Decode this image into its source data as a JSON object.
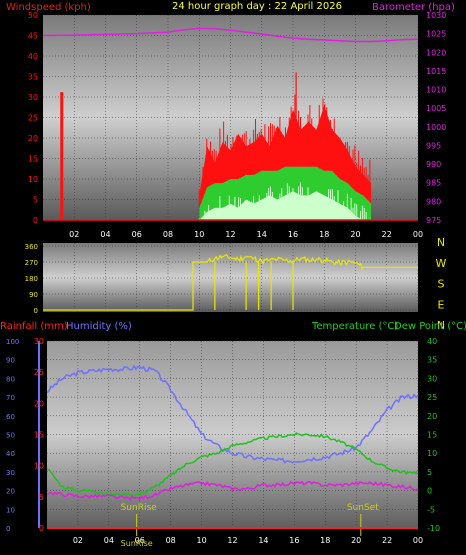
{
  "header": {
    "left_label": "Windspeed (kph)",
    "title": "24 hour graph day : 22 April 2026",
    "right_label": "Barometer (hpa)"
  },
  "colors": {
    "wind": "#ff1010",
    "gust_band": "#2ecc2e",
    "gust_light": "#ccffcc",
    "baro": "#e020e0",
    "dir": "#e8e800",
    "humidity": "#7070ff",
    "temperature": "#20c020",
    "dewpoint": "#e020e0",
    "rain": "#ff2020",
    "rain_axis": "#7070ff",
    "temp_axis": "#20c020",
    "green_label": "#22cc22",
    "sun": "#cccc20"
  },
  "chart_data": [
    {
      "type": "line",
      "name": "wind-baro",
      "x_ticks": [
        "02",
        "04",
        "06",
        "08",
        "10",
        "12",
        "14",
        "16",
        "18",
        "20",
        "22",
        "00"
      ],
      "y_left": {
        "label": "Windspeed (kph)",
        "ylim": [
          0,
          50
        ],
        "ticks": [
          "0",
          "5",
          "10",
          "15",
          "20",
          "25",
          "30",
          "35",
          "40",
          "45",
          "50"
        ]
      },
      "y_right": {
        "label": "Barometer (hpa)",
        "ylim": [
          975,
          1030
        ],
        "ticks": [
          "975",
          "980",
          "985",
          "990",
          "995",
          "1000",
          "1005",
          "1010",
          "1015",
          "1020",
          "1025",
          "1030"
        ]
      },
      "grid": true,
      "series": [
        {
          "key": "barometer",
          "x": [
            0,
            2,
            4,
            6,
            8,
            9,
            10,
            11,
            12,
            13,
            14,
            15,
            16,
            17,
            18,
            19,
            20,
            21,
            22,
            23,
            24
          ],
          "y": [
            1024.5,
            1024.6,
            1024.8,
            1025,
            1025.4,
            1026,
            1026.4,
            1026.3,
            1025.9,
            1025.4,
            1024.9,
            1024.3,
            1023.8,
            1023.5,
            1023.3,
            1023.1,
            1022.9,
            1022.9,
            1023.1,
            1023.4,
            1023.5
          ]
        },
        {
          "key": "wind_spike",
          "x": [
            1.15,
            1.15,
            1.25,
            1.25
          ],
          "y": [
            0,
            31,
            31,
            0
          ]
        }
      ],
      "wind_envelope": {
        "x": [
          10.0,
          10.5,
          11,
          11.5,
          12,
          12.5,
          13,
          13.5,
          14,
          14.5,
          15,
          15.5,
          16,
          16.5,
          17,
          17.5,
          18,
          18.5,
          19,
          19.5,
          20,
          20.5,
          21
        ],
        "gust": [
          6,
          18,
          14,
          19,
          17,
          21,
          18,
          19,
          21,
          18,
          23,
          20,
          27,
          22,
          24,
          22,
          28,
          22,
          20,
          17,
          13,
          11,
          9
        ],
        "avg": [
          3,
          8,
          9,
          9,
          10,
          10,
          11,
          11,
          12,
          12,
          12,
          13,
          13,
          13,
          13,
          13,
          12,
          12,
          10,
          9,
          7,
          6,
          4
        ],
        "low": [
          0,
          2,
          3,
          3,
          4,
          3,
          5,
          4,
          5,
          6,
          5,
          6,
          7,
          6,
          6,
          7,
          6,
          5,
          4,
          3,
          1,
          0,
          0
        ]
      }
    },
    {
      "type": "scatter",
      "name": "wind-direction",
      "x_ticks": [],
      "y_left": {
        "ylim": [
          0,
          360
        ],
        "ticks": [
          "0",
          "90",
          "180",
          "270",
          "360"
        ]
      },
      "y_right_labels": [
        "N",
        "W",
        "S",
        "E",
        "N"
      ],
      "series": [
        {
          "key": "direction",
          "x": [
            0,
            9.6,
            9.6,
            10.5,
            11,
            11.5,
            12,
            12.5,
            13,
            13.5,
            14,
            14.5,
            15,
            15.5,
            16,
            16.5,
            17,
            17.5,
            18,
            18.5,
            19,
            19.5,
            20,
            20.5,
            21,
            24
          ],
          "y": [
            0,
            0,
            270,
            270,
            290,
            300,
            295,
            285,
            300,
            290,
            275,
            280,
            285,
            280,
            275,
            290,
            280,
            285,
            280,
            270,
            265,
            270,
            265,
            240,
            240,
            240
          ]
        }
      ],
      "drops": [
        {
          "x": 11.0,
          "y": 0
        },
        {
          "x": 13.0,
          "y": 0
        },
        {
          "x": 13.8,
          "y": 0
        },
        {
          "x": 14.6,
          "y": 0
        },
        {
          "x": 16.0,
          "y": 0
        }
      ]
    },
    {
      "type": "line",
      "name": "rain-humidity-temp",
      "x_ticks": [
        "02",
        "04",
        "06",
        "08",
        "10",
        "12",
        "14",
        "16",
        "18",
        "20",
        "22",
        "00"
      ],
      "labels": {
        "rain": "Rainfall (mm)",
        "humidity": "Humidity (%)",
        "temperature": "Temperature (°C)",
        "dewpoint": "Dew Point (°C)"
      },
      "y_humidity": {
        "ylim": [
          0,
          100
        ],
        "ticks": [
          "0",
          "10",
          "20",
          "30",
          "40",
          "50",
          "60",
          "70",
          "80",
          "90",
          "100"
        ]
      },
      "y_rain": {
        "ylim": [
          0,
          30
        ],
        "ticks": [
          "0",
          "5",
          "10",
          "15",
          "20",
          "25",
          "30"
        ]
      },
      "y_temp": {
        "ylim": [
          -10,
          40
        ],
        "ticks": [
          "-10",
          "-5",
          "0",
          "5",
          "10",
          "15",
          "20",
          "25",
          "30",
          "35",
          "40"
        ]
      },
      "grid": true,
      "sunrise": {
        "label": "SunRise",
        "x": 5.8
      },
      "sunset": {
        "label": "SunSet",
        "x": 20.3
      },
      "x_marker": "SunRise",
      "series": [
        {
          "key": "humidity",
          "x": [
            0,
            1,
            2,
            3,
            4,
            5,
            6,
            7,
            8,
            9,
            10,
            11,
            12,
            13,
            14,
            15,
            16,
            17,
            18,
            19,
            20,
            21,
            22,
            23,
            24
          ],
          "y": [
            73,
            80,
            83,
            84,
            85,
            85,
            86,
            84,
            74,
            62,
            50,
            44,
            40,
            38,
            37,
            36,
            36,
            37,
            38,
            40,
            43,
            52,
            63,
            70,
            71
          ]
        },
        {
          "key": "temperature",
          "x": [
            0,
            1,
            2,
            3,
            4,
            5,
            6,
            7,
            8,
            9,
            10,
            11,
            12,
            13,
            14,
            15,
            16,
            17,
            18,
            19,
            20,
            21,
            22,
            23,
            24
          ],
          "y": [
            6,
            1,
            0,
            0,
            -1,
            -1,
            -1,
            1,
            4,
            7,
            9,
            10,
            12,
            13,
            14,
            14.5,
            15,
            15,
            14.5,
            13,
            11,
            8,
            6,
            5,
            4.5
          ]
        },
        {
          "key": "dewpoint",
          "x": [
            0,
            1,
            2,
            3,
            4,
            5,
            6,
            7,
            8,
            9,
            10,
            11,
            12,
            13,
            14,
            15,
            16,
            17,
            18,
            19,
            20,
            21,
            22,
            23,
            24
          ],
          "y": [
            -0.5,
            -1,
            -1.5,
            -1.5,
            -1.5,
            -2,
            -2,
            -1.2,
            0.5,
            1.5,
            2,
            1.5,
            0.5,
            0.5,
            1.5,
            1.5,
            2,
            2,
            1.5,
            1.5,
            2,
            2,
            1.5,
            1,
            0.5
          ]
        },
        {
          "key": "rainfall",
          "x": [
            0,
            24
          ],
          "y": [
            0,
            0
          ]
        }
      ]
    }
  ]
}
